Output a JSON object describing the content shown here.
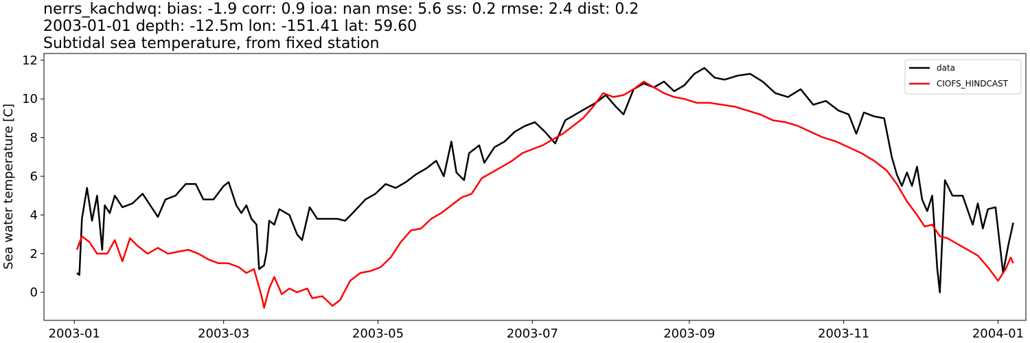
{
  "chart_data": {
    "type": "line",
    "title_lines": [
      "nerrs_kachdwq: bias: -1.9  corr: 0.9  ioa: nan  mse: 5.6  ss: 0.2  rmse: 2.4  dist: 0.2",
      "2003-01-01 depth: -12.5m lon: -151.41 lat: 59.60",
      "Subtidal sea temperature, from fixed station"
    ],
    "xlabel": "",
    "ylabel": "Sea water temperature [C]",
    "x_ticks": [
      "2003-01",
      "2003-03",
      "2003-05",
      "2003-07",
      "2003-09",
      "2003-11",
      "2004-01"
    ],
    "y_ticks": [
      0,
      2,
      4,
      6,
      8,
      10,
      12
    ],
    "xlim": [
      "2002-12-20",
      "2004-01-12"
    ],
    "ylim": [
      -1.45,
      12.35
    ],
    "grid": false,
    "legend_position": "top-right",
    "series": [
      {
        "name": "data",
        "color": "#000000",
        "points": [
          [
            "2003-01-02",
            1.0
          ],
          [
            "2003-01-03",
            0.9
          ],
          [
            "2003-01-04",
            3.8
          ],
          [
            "2003-01-06",
            5.4
          ],
          [
            "2003-01-08",
            3.7
          ],
          [
            "2003-01-10",
            5.0
          ],
          [
            "2003-01-12",
            2.2
          ],
          [
            "2003-01-13",
            4.5
          ],
          [
            "2003-01-15",
            4.1
          ],
          [
            "2003-01-17",
            5.0
          ],
          [
            "2003-01-20",
            4.4
          ],
          [
            "2003-01-24",
            4.6
          ],
          [
            "2003-01-28",
            5.1
          ],
          [
            "2003-02-01",
            4.3
          ],
          [
            "2003-02-03",
            3.9
          ],
          [
            "2003-02-06",
            4.8
          ],
          [
            "2003-02-10",
            5.0
          ],
          [
            "2003-02-14",
            5.6
          ],
          [
            "2003-02-18",
            5.6
          ],
          [
            "2003-02-21",
            4.8
          ],
          [
            "2003-02-25",
            4.8
          ],
          [
            "2003-03-01",
            5.5
          ],
          [
            "2003-03-03",
            5.7
          ],
          [
            "2003-03-06",
            4.5
          ],
          [
            "2003-03-08",
            4.1
          ],
          [
            "2003-03-10",
            4.5
          ],
          [
            "2003-03-12",
            3.8
          ],
          [
            "2003-03-14",
            3.5
          ],
          [
            "2003-03-15",
            1.2
          ],
          [
            "2003-03-17",
            1.4
          ],
          [
            "2003-03-18",
            2.1
          ],
          [
            "2003-03-19",
            3.7
          ],
          [
            "2003-03-21",
            3.5
          ],
          [
            "2003-03-23",
            4.3
          ],
          [
            "2003-03-27",
            4.0
          ],
          [
            "2003-03-30",
            3.0
          ],
          [
            "2003-04-01",
            2.7
          ],
          [
            "2003-04-04",
            4.4
          ],
          [
            "2003-04-07",
            3.8
          ],
          [
            "2003-04-11",
            3.8
          ],
          [
            "2003-04-15",
            3.8
          ],
          [
            "2003-04-18",
            3.7
          ],
          [
            "2003-04-21",
            4.1
          ],
          [
            "2003-04-26",
            4.8
          ],
          [
            "2003-04-30",
            5.1
          ],
          [
            "2003-05-04",
            5.6
          ],
          [
            "2003-05-08",
            5.4
          ],
          [
            "2003-05-12",
            5.7
          ],
          [
            "2003-05-16",
            6.1
          ],
          [
            "2003-05-20",
            6.4
          ],
          [
            "2003-05-24",
            6.8
          ],
          [
            "2003-05-27",
            6.0
          ],
          [
            "2003-05-30",
            7.8
          ],
          [
            "2003-06-01",
            6.2
          ],
          [
            "2003-06-04",
            5.8
          ],
          [
            "2003-06-06",
            7.2
          ],
          [
            "2003-06-10",
            7.6
          ],
          [
            "2003-06-12",
            6.7
          ],
          [
            "2003-06-16",
            7.5
          ],
          [
            "2003-06-20",
            7.8
          ],
          [
            "2003-06-24",
            8.3
          ],
          [
            "2003-06-28",
            8.6
          ],
          [
            "2003-07-02",
            8.8
          ],
          [
            "2003-07-06",
            8.3
          ],
          [
            "2003-07-10",
            7.7
          ],
          [
            "2003-07-14",
            8.9
          ],
          [
            "2003-07-18",
            9.2
          ],
          [
            "2003-07-22",
            9.5
          ],
          [
            "2003-07-26",
            9.8
          ],
          [
            "2003-07-30",
            10.2
          ],
          [
            "2003-08-03",
            9.6
          ],
          [
            "2003-08-06",
            9.2
          ],
          [
            "2003-08-10",
            10.5
          ],
          [
            "2003-08-14",
            10.8
          ],
          [
            "2003-08-18",
            10.6
          ],
          [
            "2003-08-22",
            10.9
          ],
          [
            "2003-08-26",
            10.4
          ],
          [
            "2003-08-30",
            10.7
          ],
          [
            "2003-09-03",
            11.3
          ],
          [
            "2003-09-07",
            11.6
          ],
          [
            "2003-09-11",
            11.1
          ],
          [
            "2003-09-15",
            11.0
          ],
          [
            "2003-09-20",
            11.2
          ],
          [
            "2003-09-25",
            11.3
          ],
          [
            "2003-09-30",
            10.9
          ],
          [
            "2003-10-05",
            10.3
          ],
          [
            "2003-10-10",
            10.1
          ],
          [
            "2003-10-15",
            10.5
          ],
          [
            "2003-10-20",
            9.7
          ],
          [
            "2003-10-25",
            9.9
          ],
          [
            "2003-10-30",
            9.4
          ],
          [
            "2003-11-03",
            9.2
          ],
          [
            "2003-11-06",
            8.2
          ],
          [
            "2003-11-09",
            9.3
          ],
          [
            "2003-11-13",
            9.1
          ],
          [
            "2003-11-17",
            9.0
          ],
          [
            "2003-11-20",
            7.0
          ],
          [
            "2003-11-22",
            6.1
          ],
          [
            "2003-11-24",
            5.5
          ],
          [
            "2003-11-26",
            6.2
          ],
          [
            "2003-11-28",
            5.5
          ],
          [
            "2003-11-30",
            6.5
          ],
          [
            "2003-12-02",
            4.8
          ],
          [
            "2003-12-04",
            4.2
          ],
          [
            "2003-12-06",
            5.0
          ],
          [
            "2003-12-08",
            1.2
          ],
          [
            "2003-12-09",
            0.0
          ],
          [
            "2003-12-11",
            5.8
          ],
          [
            "2003-12-14",
            5.0
          ],
          [
            "2003-12-18",
            5.0
          ],
          [
            "2003-12-22",
            3.5
          ],
          [
            "2003-12-24",
            4.6
          ],
          [
            "2003-12-26",
            3.3
          ],
          [
            "2003-12-28",
            4.3
          ],
          [
            "2003-12-31",
            4.4
          ],
          [
            "2004-01-03",
            1.0
          ],
          [
            "2004-01-05",
            2.4
          ],
          [
            "2004-01-07",
            3.6
          ]
        ]
      },
      {
        "name": "CIOFS_HINDCAST",
        "color": "#ff0000",
        "points": [
          [
            "2003-01-02",
            2.2
          ],
          [
            "2003-01-04",
            2.9
          ],
          [
            "2003-01-07",
            2.6
          ],
          [
            "2003-01-10",
            2.0
          ],
          [
            "2003-01-14",
            2.0
          ],
          [
            "2003-01-17",
            2.7
          ],
          [
            "2003-01-20",
            1.6
          ],
          [
            "2003-01-23",
            2.8
          ],
          [
            "2003-01-26",
            2.4
          ],
          [
            "2003-01-30",
            2.0
          ],
          [
            "2003-02-03",
            2.3
          ],
          [
            "2003-02-07",
            2.0
          ],
          [
            "2003-02-11",
            2.1
          ],
          [
            "2003-02-15",
            2.2
          ],
          [
            "2003-02-19",
            2.0
          ],
          [
            "2003-02-23",
            1.7
          ],
          [
            "2003-02-27",
            1.5
          ],
          [
            "2003-03-03",
            1.5
          ],
          [
            "2003-03-07",
            1.3
          ],
          [
            "2003-03-10",
            1.0
          ],
          [
            "2003-03-13",
            1.2
          ],
          [
            "2003-03-16",
            -0.2
          ],
          [
            "2003-03-17",
            -0.8
          ],
          [
            "2003-03-19",
            0.2
          ],
          [
            "2003-03-21",
            0.8
          ],
          [
            "2003-03-24",
            -0.1
          ],
          [
            "2003-03-27",
            0.2
          ],
          [
            "2003-03-30",
            0.0
          ],
          [
            "2003-04-03",
            0.2
          ],
          [
            "2003-04-05",
            -0.3
          ],
          [
            "2003-04-09",
            -0.2
          ],
          [
            "2003-04-13",
            -0.7
          ],
          [
            "2003-04-16",
            -0.4
          ],
          [
            "2003-04-20",
            0.6
          ],
          [
            "2003-04-24",
            1.0
          ],
          [
            "2003-04-28",
            1.1
          ],
          [
            "2003-05-02",
            1.3
          ],
          [
            "2003-05-06",
            1.8
          ],
          [
            "2003-05-10",
            2.6
          ],
          [
            "2003-05-14",
            3.2
          ],
          [
            "2003-05-18",
            3.3
          ],
          [
            "2003-05-22",
            3.8
          ],
          [
            "2003-05-26",
            4.1
          ],
          [
            "2003-05-30",
            4.5
          ],
          [
            "2003-06-03",
            4.9
          ],
          [
            "2003-06-07",
            5.1
          ],
          [
            "2003-06-11",
            5.9
          ],
          [
            "2003-06-15",
            6.2
          ],
          [
            "2003-06-19",
            6.5
          ],
          [
            "2003-06-23",
            6.8
          ],
          [
            "2003-06-27",
            7.2
          ],
          [
            "2003-07-01",
            7.4
          ],
          [
            "2003-07-05",
            7.6
          ],
          [
            "2003-07-09",
            7.9
          ],
          [
            "2003-07-13",
            8.2
          ],
          [
            "2003-07-17",
            8.6
          ],
          [
            "2003-07-21",
            9.0
          ],
          [
            "2003-07-25",
            9.6
          ],
          [
            "2003-07-29",
            10.3
          ],
          [
            "2003-08-02",
            10.1
          ],
          [
            "2003-08-06",
            10.2
          ],
          [
            "2003-08-10",
            10.5
          ],
          [
            "2003-08-14",
            10.9
          ],
          [
            "2003-08-18",
            10.6
          ],
          [
            "2003-08-22",
            10.3
          ],
          [
            "2003-08-26",
            10.1
          ],
          [
            "2003-08-30",
            10.0
          ],
          [
            "2003-09-04",
            9.8
          ],
          [
            "2003-09-09",
            9.8
          ],
          [
            "2003-09-14",
            9.7
          ],
          [
            "2003-09-19",
            9.6
          ],
          [
            "2003-09-24",
            9.4
          ],
          [
            "2003-09-29",
            9.2
          ],
          [
            "2003-10-04",
            8.9
          ],
          [
            "2003-10-09",
            8.8
          ],
          [
            "2003-10-14",
            8.6
          ],
          [
            "2003-10-19",
            8.3
          ],
          [
            "2003-10-24",
            8.0
          ],
          [
            "2003-10-29",
            7.8
          ],
          [
            "2003-11-03",
            7.5
          ],
          [
            "2003-11-08",
            7.2
          ],
          [
            "2003-11-13",
            6.8
          ],
          [
            "2003-11-18",
            6.3
          ],
          [
            "2003-11-22",
            5.6
          ],
          [
            "2003-11-26",
            4.7
          ],
          [
            "2003-11-30",
            4.0
          ],
          [
            "2003-12-03",
            3.4
          ],
          [
            "2003-12-06",
            3.5
          ],
          [
            "2003-12-09",
            2.9
          ],
          [
            "2003-12-12",
            2.8
          ],
          [
            "2003-12-16",
            2.5
          ],
          [
            "2003-12-20",
            2.2
          ],
          [
            "2003-12-24",
            1.9
          ],
          [
            "2003-12-28",
            1.3
          ],
          [
            "2004-01-01",
            0.6
          ],
          [
            "2004-01-04",
            1.2
          ],
          [
            "2004-01-06",
            1.8
          ],
          [
            "2004-01-07",
            1.5
          ]
        ]
      }
    ]
  }
}
